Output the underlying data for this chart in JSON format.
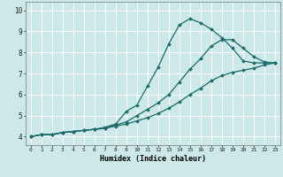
{
  "title": "",
  "xlabel": "Humidex (Indice chaleur)",
  "background_color": "#cce8e8",
  "grid_color": "#ffffff",
  "line_color": "#1a6b6b",
  "xlim": [
    -0.5,
    23.5
  ],
  "ylim": [
    3.6,
    10.4
  ],
  "xticks": [
    0,
    1,
    2,
    3,
    4,
    5,
    6,
    7,
    8,
    9,
    10,
    11,
    12,
    13,
    14,
    15,
    16,
    17,
    18,
    19,
    20,
    21,
    22,
    23
  ],
  "yticks": [
    4,
    5,
    6,
    7,
    8,
    9,
    10
  ],
  "series1_x": [
    0,
    1,
    2,
    3,
    4,
    5,
    6,
    7,
    8,
    9,
    10,
    11,
    12,
    13,
    14,
    15,
    16,
    17,
    18,
    19,
    20,
    21,
    22,
    23
  ],
  "series1_y": [
    4.0,
    4.1,
    4.1,
    4.2,
    4.25,
    4.3,
    4.35,
    4.45,
    4.6,
    5.2,
    5.5,
    6.4,
    7.3,
    8.4,
    9.3,
    9.6,
    9.4,
    9.1,
    8.7,
    8.2,
    7.6,
    7.5,
    7.5,
    7.5
  ],
  "series2_x": [
    0,
    1,
    2,
    3,
    4,
    5,
    6,
    7,
    8,
    9,
    10,
    11,
    12,
    13,
    14,
    15,
    16,
    17,
    18,
    19,
    20,
    21,
    22,
    23
  ],
  "series2_y": [
    4.0,
    4.1,
    4.1,
    4.2,
    4.25,
    4.3,
    4.35,
    4.4,
    4.55,
    4.7,
    5.0,
    5.3,
    5.6,
    6.0,
    6.6,
    7.2,
    7.7,
    8.3,
    8.6,
    8.6,
    8.2,
    7.8,
    7.55,
    7.5
  ],
  "series3_x": [
    0,
    1,
    2,
    3,
    4,
    5,
    6,
    7,
    8,
    9,
    10,
    11,
    12,
    13,
    14,
    15,
    16,
    17,
    18,
    19,
    20,
    21,
    22,
    23
  ],
  "series3_y": [
    4.0,
    4.1,
    4.1,
    4.2,
    4.25,
    4.3,
    4.35,
    4.4,
    4.5,
    4.6,
    4.75,
    4.9,
    5.1,
    5.35,
    5.65,
    6.0,
    6.3,
    6.65,
    6.9,
    7.05,
    7.15,
    7.25,
    7.4,
    7.5
  ]
}
